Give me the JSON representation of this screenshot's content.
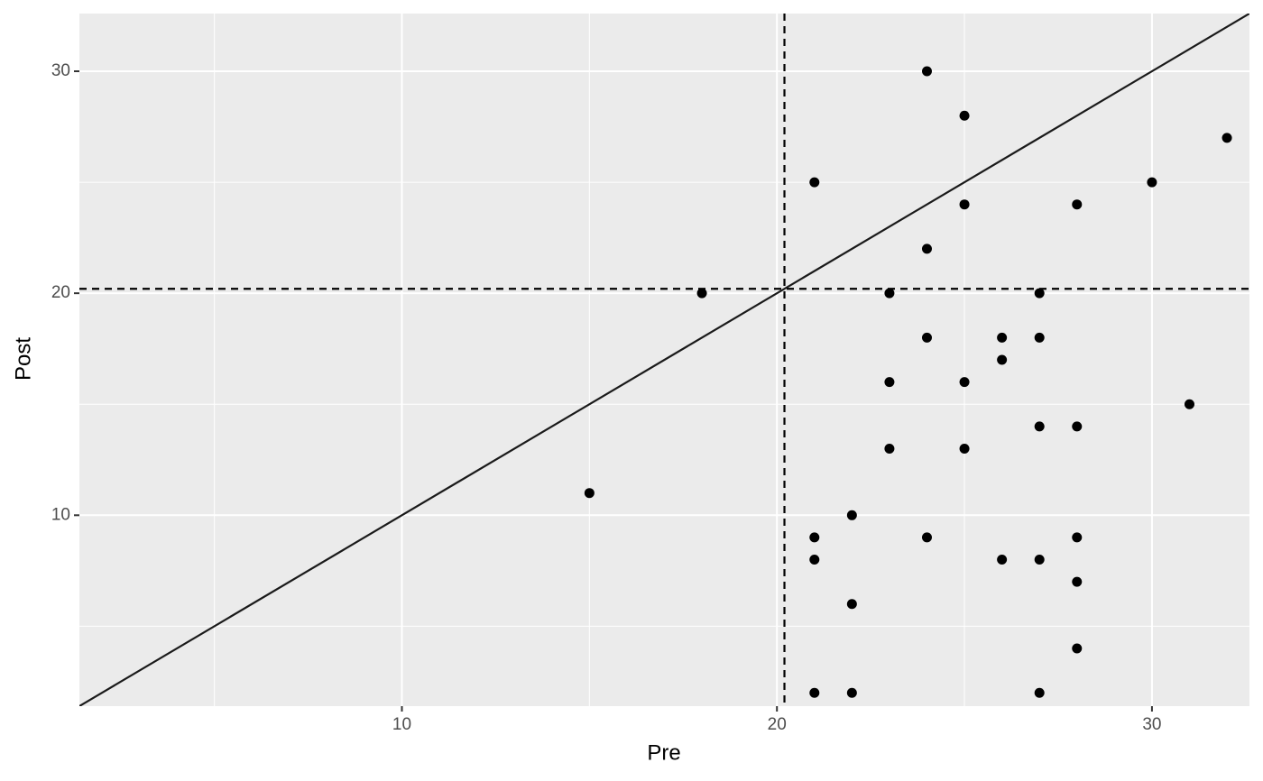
{
  "chart_data": {
    "type": "scatter",
    "x_label": "Pre",
    "y_label": "Post",
    "x": [
      15,
      18,
      21,
      21,
      21,
      21,
      22,
      22,
      22,
      23,
      23,
      23,
      24,
      24,
      24,
      24,
      25,
      25,
      25,
      25,
      26,
      26,
      26,
      27,
      27,
      27,
      27,
      27,
      28,
      28,
      28,
      28,
      28,
      30,
      31,
      32
    ],
    "y": [
      11,
      20,
      25,
      9,
      8,
      2,
      10,
      6,
      2,
      20,
      16,
      13,
      30,
      22,
      18,
      9,
      28,
      24,
      16,
      13,
      18,
      17,
      8,
      20,
      18,
      14,
      8,
      2,
      24,
      14,
      9,
      7,
      4,
      25,
      15,
      27
    ],
    "color": "#000000",
    "xlim": [
      1.4,
      32.6
    ],
    "ylim": [
      1.4,
      32.6
    ],
    "xticks": [
      10,
      20,
      30
    ],
    "yticks": [
      10,
      20,
      30
    ],
    "x_minor_breaks": [
      5,
      15,
      25
    ],
    "y_minor_breaks": [
      5,
      15,
      25
    ],
    "grid": true,
    "vlines": [
      20.2
    ],
    "hlines": [
      20.2
    ],
    "abline": {
      "slope": 1,
      "intercept": 0
    }
  }
}
